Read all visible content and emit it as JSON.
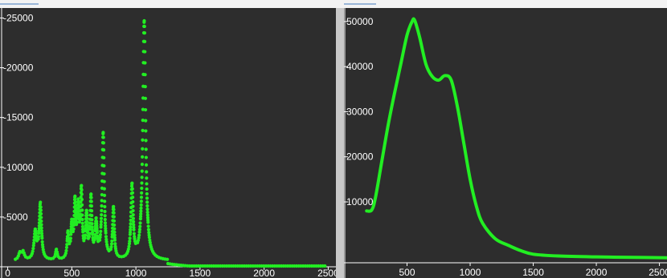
{
  "chart_data": [
    {
      "type": "scatter",
      "render": "dots",
      "color": "#22ee22",
      "background": "#2d2d2d",
      "title": "",
      "xlabel": "",
      "ylabel": "",
      "xlim": [
        -60,
        2560
      ],
      "ylim": [
        0,
        26000
      ],
      "x_ticks": [
        0,
        500,
        1000,
        1500,
        2000,
        2500
      ],
      "x_tick_labels": [
        "0",
        "500",
        "1000",
        "1500",
        "2000",
        "2500"
      ],
      "y_ticks": [
        5000,
        10000,
        15000,
        20000,
        25000
      ],
      "y_tick_labels": [
        "-5000",
        "-10000",
        "-15000",
        "-20000",
        "-25000"
      ],
      "grid": false,
      "peaks": [
        {
          "x": 95,
          "y": 700,
          "w": 12
        },
        {
          "x": 120,
          "y": 800,
          "w": 12
        },
        {
          "x": 215,
          "y": 2800,
          "w": 12
        },
        {
          "x": 255,
          "y": 5600,
          "w": 10
        },
        {
          "x": 380,
          "y": 1000,
          "w": 8
        },
        {
          "x": 470,
          "y": 2500,
          "w": 8
        },
        {
          "x": 500,
          "y": 3200,
          "w": 8
        },
        {
          "x": 525,
          "y": 5400,
          "w": 8
        },
        {
          "x": 550,
          "y": 4800,
          "w": 8
        },
        {
          "x": 575,
          "y": 6600,
          "w": 8
        },
        {
          "x": 615,
          "y": 4200,
          "w": 8
        },
        {
          "x": 650,
          "y": 6000,
          "w": 8
        },
        {
          "x": 690,
          "y": 3500,
          "w": 9
        },
        {
          "x": 745,
          "y": 12600,
          "w": 10
        },
        {
          "x": 825,
          "y": 5100,
          "w": 8
        },
        {
          "x": 970,
          "y": 7300,
          "w": 10
        },
        {
          "x": 1065,
          "y": 24000,
          "w": 13
        }
      ],
      "baseline": {
        "x_end": 1250,
        "y": 600
      },
      "range": [
        60,
        2480
      ]
    },
    {
      "type": "line",
      "color": "#22ee22",
      "background": "#2d2d2d",
      "title": "",
      "xlabel": "",
      "ylabel": "",
      "xlim": [
        0,
        2560
      ],
      "ylim": [
        -3500,
        53000
      ],
      "x_ticks": [
        500,
        1000,
        1500,
        2000,
        2500
      ],
      "x_tick_labels": [
        "500",
        "1000",
        "1500",
        "2000",
        "2500"
      ],
      "y_ticks": [
        10000,
        20000,
        30000,
        40000,
        50000
      ],
      "y_tick_labels": [
        "10000",
        "20000",
        "30000",
        "40000",
        "50000"
      ],
      "grid": false,
      "x": [
        180,
        220,
        250,
        300,
        350,
        400,
        450,
        500,
        540,
        560,
        600,
        650,
        700,
        750,
        800,
        850,
        900,
        950,
        1000,
        1050,
        1100,
        1200,
        1300,
        1400,
        1500,
        1700,
        2000,
        2300,
        2560
      ],
      "y": [
        8000,
        8200,
        11000,
        19000,
        27000,
        34000,
        40500,
        47000,
        50000,
        50300,
        46500,
        40500,
        37800,
        37000,
        38000,
        37000,
        31000,
        23000,
        15000,
        9000,
        5200,
        1800,
        400,
        -800,
        -1600,
        -2000,
        -2200,
        -2300,
        -2400
      ]
    }
  ]
}
